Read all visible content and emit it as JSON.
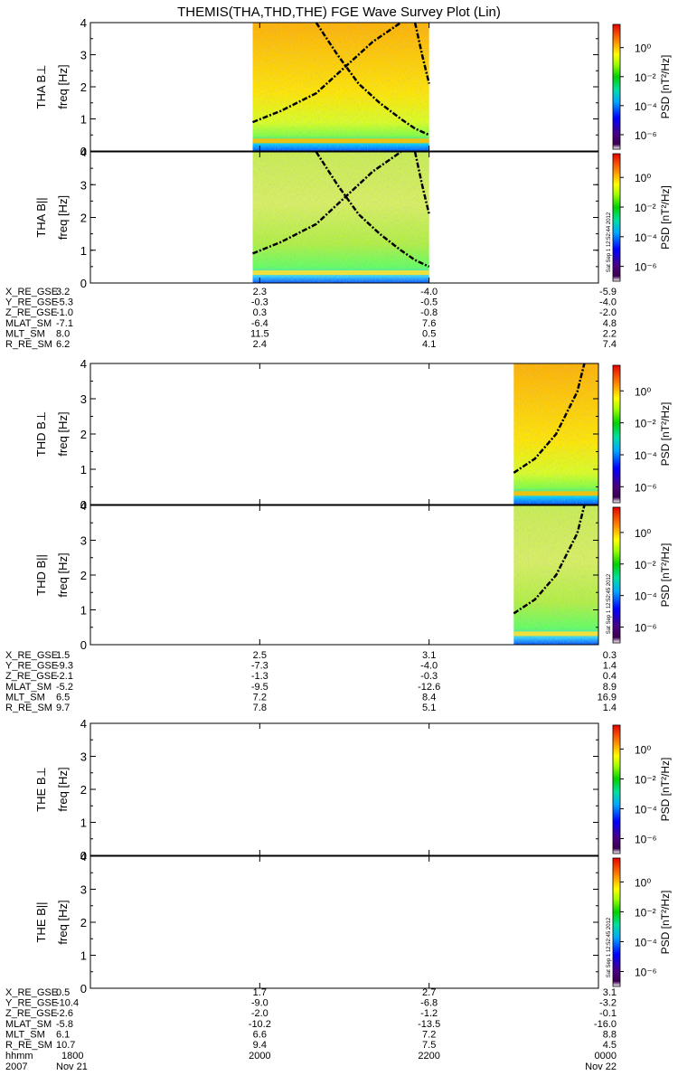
{
  "title": "THEMIS(THA,THD,THE) FGE Wave Survey Plot (Lin)",
  "colorbar": {
    "label": "PSD [nT²/Hz]",
    "tick_labels": [
      "10⁰",
      "10⁻²",
      "10⁻⁴",
      "10⁻⁶"
    ],
    "tick_log_values": [
      0,
      -2,
      -4,
      -6
    ],
    "log_range": [
      -7,
      1.6
    ]
  },
  "time_axis": {
    "start_hhmm": 1800,
    "end_hhmm": 2400,
    "labels": [
      "1800",
      "2000",
      "2200",
      "0000"
    ],
    "label_hhmm": [
      1800,
      2000,
      2200,
      2400
    ],
    "row_label_hhmm": "hhmm",
    "date_left_year": "2007",
    "date_left_day": "Nov 21",
    "date_right_day": "Nov 22"
  },
  "panels": [
    {
      "probe": "THA",
      "component": "B⊥",
      "label": "THA B⊥",
      "ylabel": "freq [Hz]",
      "stamp": "",
      "y_ticks": [
        "0",
        "1",
        "2",
        "3",
        "4"
      ],
      "ylim": [
        0,
        4
      ],
      "data_time_range": [
        1955,
        2200
      ],
      "band_strength": "high"
    },
    {
      "probe": "THA",
      "component": "B||",
      "label": "THA B||",
      "ylabel": "freq [Hz]",
      "stamp": "Sat Sep  1 12:52:44 2012",
      "y_ticks": [
        "0",
        "1",
        "2",
        "3",
        "4"
      ],
      "ylim": [
        0,
        4
      ],
      "data_time_range": [
        1955,
        2200
      ],
      "band_strength": "low"
    },
    {
      "probe": "THD",
      "component": "B⊥",
      "label": "THD B⊥",
      "ylabel": "freq [Hz]",
      "stamp": "",
      "y_ticks": [
        "0",
        "1",
        "2",
        "3",
        "4"
      ],
      "ylim": [
        0,
        4
      ],
      "data_time_range": [
        2300,
        2400
      ],
      "band_strength": "high"
    },
    {
      "probe": "THD",
      "component": "B||",
      "label": "THD B||",
      "ylabel": "freq [Hz]",
      "stamp": "Sat Sep  1 12:52:45 2012",
      "y_ticks": [
        "0",
        "1",
        "2",
        "3",
        "4"
      ],
      "ylim": [
        0,
        4
      ],
      "data_time_range": [
        2300,
        2400
      ],
      "band_strength": "low"
    },
    {
      "probe": "THE",
      "component": "B⊥",
      "label": "THE B⊥",
      "ylabel": "freq [Hz]",
      "stamp": "",
      "y_ticks": [
        "0",
        "1",
        "2",
        "3",
        "4"
      ],
      "ylim": [
        0,
        4
      ],
      "data_time_range": null,
      "band_strength": "none"
    },
    {
      "probe": "THE",
      "component": "B||",
      "label": "THE B||",
      "ylabel": "freq [Hz]",
      "stamp": "Sat Sep  1 12:52:45 2012",
      "y_ticks": [
        "0",
        "1",
        "2",
        "3",
        "4"
      ],
      "ylim": [
        0,
        4
      ],
      "data_time_range": null,
      "band_strength": "none"
    }
  ],
  "ephemeris": [
    {
      "probe": "THA",
      "rows": [
        {
          "name": "X_RE_GSE",
          "values": [
            "3.2",
            "2.3",
            "-4.0",
            "-5.9"
          ]
        },
        {
          "name": "Y_RE_GSE",
          "values": [
            "-5.3",
            "-0.3",
            "-0.5",
            "-4.0"
          ]
        },
        {
          "name": "Z_RE_GSE",
          "values": [
            "-1.0",
            "0.3",
            "-0.8",
            "-2.0"
          ]
        },
        {
          "name": "MLAT_SM",
          "values": [
            "-7.1",
            "-6.4",
            "7.6",
            "4.8"
          ]
        },
        {
          "name": "MLT_SM",
          "values": [
            "8.0",
            "11.5",
            "0.5",
            "2.2"
          ]
        },
        {
          "name": "R_RE_SM",
          "values": [
            "6.2",
            "2.4",
            "4.1",
            "7.4"
          ]
        }
      ]
    },
    {
      "probe": "THD",
      "rows": [
        {
          "name": "X_RE_GSE",
          "values": [
            "1.5",
            "2.5",
            "3.1",
            "0.3"
          ]
        },
        {
          "name": "Y_RE_GSE",
          "values": [
            "-9.3",
            "-7.3",
            "-4.0",
            "1.4"
          ]
        },
        {
          "name": "Z_RE_GSE",
          "values": [
            "-2.1",
            "-1.3",
            "-0.3",
            "0.4"
          ]
        },
        {
          "name": "MLAT_SM",
          "values": [
            "-5.2",
            "-9.5",
            "-12.6",
            "8.9"
          ]
        },
        {
          "name": "MLT_SM",
          "values": [
            "6.5",
            "7.2",
            "8.4",
            "16.9"
          ]
        },
        {
          "name": "R_RE_SM",
          "values": [
            "9.7",
            "7.8",
            "5.1",
            "1.4"
          ]
        }
      ]
    },
    {
      "probe": "THE",
      "rows": [
        {
          "name": "X_RE_GSE",
          "values": [
            "0.5",
            "1.7",
            "2.7",
            "3.1"
          ]
        },
        {
          "name": "Y_RE_GSE",
          "values": [
            "-10.4",
            "-9.0",
            "-6.8",
            "-3.2"
          ]
        },
        {
          "name": "Z_RE_GSE",
          "values": [
            "-2.6",
            "-2.0",
            "-1.2",
            "-0.1"
          ]
        },
        {
          "name": "MLAT_SM",
          "values": [
            "-5.8",
            "-10.2",
            "-13.5",
            "-16.0"
          ]
        },
        {
          "name": "MLT_SM",
          "values": [
            "6.1",
            "6.6",
            "7.2",
            "8.8"
          ]
        },
        {
          "name": "R_RE_SM",
          "values": [
            "10.7",
            "9.4",
            "7.5",
            "4.5"
          ]
        }
      ]
    }
  ],
  "chart_data": {
    "type": "heatmap",
    "title": "THEMIS(THA,THD,THE) FGE Wave Survey Plot (Lin)",
    "xlabel": "hhmm",
    "ylabel": "freq [Hz]",
    "ylim": [
      0,
      4
    ],
    "x_ticks": [
      "1800",
      "2000",
      "2200",
      "0000"
    ],
    "colorbar_label": "PSD [nT²/Hz]",
    "colorbar_log_range": [
      -7,
      1.6
    ],
    "series": [
      {
        "name": "THA B⊥",
        "data_time_range": [
          1955,
          2200
        ]
      },
      {
        "name": "THA B||",
        "data_time_range": [
          1955,
          2200
        ]
      },
      {
        "name": "THD B⊥",
        "data_time_range": [
          2300,
          2400
        ]
      },
      {
        "name": "THD B||",
        "data_time_range": [
          2300,
          2400
        ]
      },
      {
        "name": "THE B⊥",
        "data_time_range": null
      },
      {
        "name": "THE B||",
        "data_time_range": null
      }
    ],
    "overlay_curves_hz": {
      "THA": [
        {
          "time_hhmm": [
            1955,
            2015,
            2040,
            2100,
            2120,
            2140,
            2200
          ],
          "freq_hz": [
            0.9,
            1.25,
            1.8,
            2.6,
            3.4,
            4.0,
            null
          ]
        },
        {
          "time_hhmm": [
            2040,
            2055,
            2110,
            2125,
            2140,
            2150,
            2200
          ],
          "freq_hz": [
            4.0,
            3.0,
            2.1,
            1.5,
            1.0,
            0.7,
            0.5
          ]
        },
        {
          "time_hhmm": [
            2150,
            2155,
            2200
          ],
          "freq_hz": [
            4.0,
            3.0,
            2.1
          ]
        }
      ],
      "THD": [
        {
          "time_hhmm": [
            2300,
            2315,
            2330,
            2345,
            2350
          ],
          "freq_hz": [
            0.9,
            1.3,
            2.0,
            3.2,
            4.0
          ]
        }
      ]
    }
  }
}
